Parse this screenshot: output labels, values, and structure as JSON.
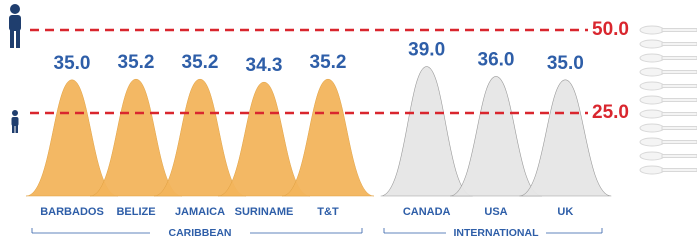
{
  "chart_data": {
    "type": "peak",
    "series": [
      {
        "name": "CARIBBEAN",
        "color": "#f2b45c",
        "categories": [
          "BARBADOS",
          "BELIZE",
          "JAMAICA",
          "SURINAME",
          "T&T"
        ],
        "values": [
          35.0,
          35.2,
          35.2,
          34.3,
          35.2
        ],
        "value_labels": [
          "35.0",
          "35.2",
          "35.2",
          "34.3",
          "35.2"
        ]
      },
      {
        "name": "INTERNATIONAL",
        "color": "#e6e6e6",
        "categories": [
          "CANADA",
          "USA",
          "UK"
        ],
        "values": [
          39.0,
          36.0,
          35.0
        ],
        "value_labels": [
          "39.0",
          "36.0",
          "35.0"
        ]
      }
    ],
    "ylim": [
      0,
      50
    ],
    "yticks": [
      {
        "value": 25,
        "label": "25.0"
      },
      {
        "value": 50,
        "label": "50.0"
      }
    ],
    "reference_color": "#d9262e"
  }
}
